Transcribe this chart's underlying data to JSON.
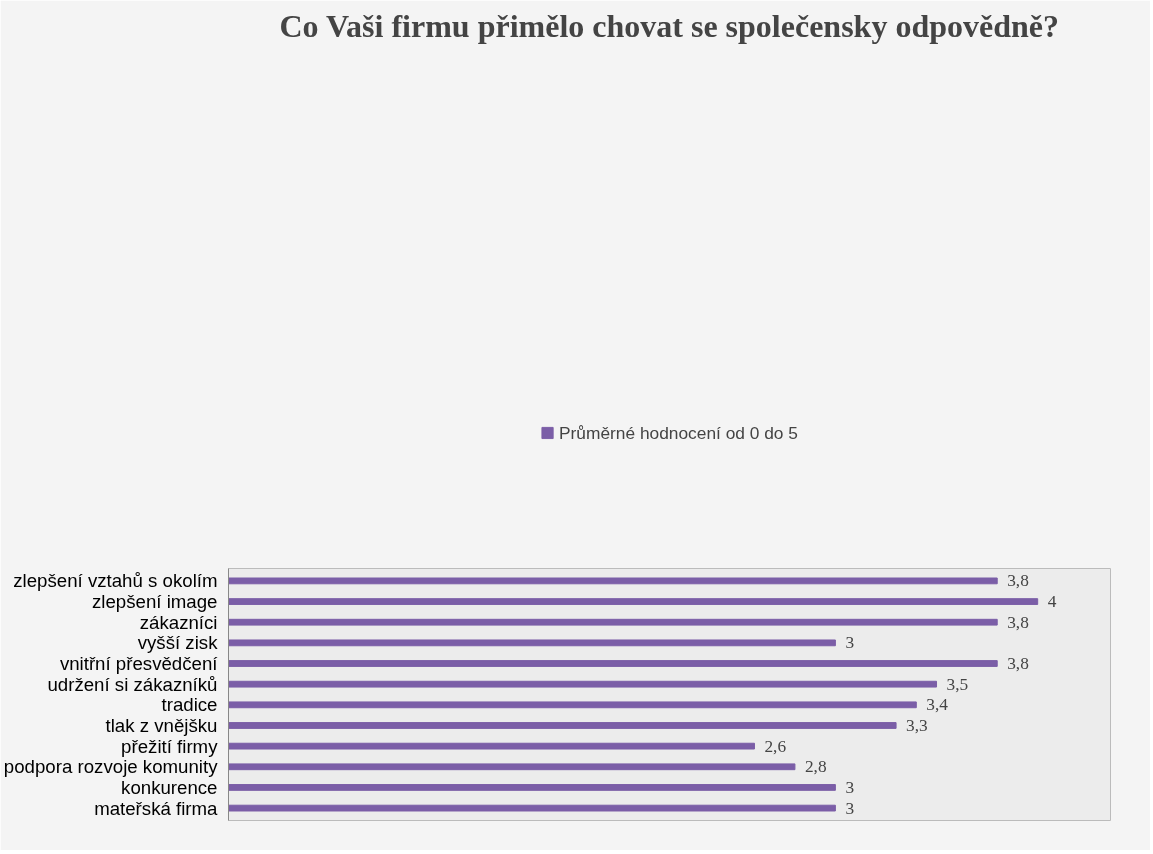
{
  "chart_data": {
    "type": "bar",
    "orientation": "horizontal",
    "title": "Co Vaši firmu přimělo chovat se společensky odpovědně?",
    "categories": [
      "zlepšení vztahů s okolím",
      "zlepšení image",
      "zákazníci",
      "vyšší zisk",
      "vnitřní přesvědčení",
      "udržení si zákazníků",
      "tradice",
      "tlak z vnějšku",
      "přežití firmy",
      "podpora rozvoje komunity",
      "konkurence",
      "mateřská firma"
    ],
    "series": [
      {
        "name": "Průměrné hodnocení od 0 do 5",
        "color": "#7b5ea7",
        "values": [
          3.8,
          4,
          3.8,
          3,
          3.8,
          3.5,
          3.4,
          3.3,
          2.6,
          2.8,
          3,
          3
        ],
        "value_labels": [
          "3,8",
          "4",
          "3,8",
          "3",
          "3,8",
          "3,5",
          "3,4",
          "3,3",
          "2,6",
          "2,8",
          "3",
          "3"
        ]
      }
    ],
    "legend": "top",
    "grid": false
  }
}
